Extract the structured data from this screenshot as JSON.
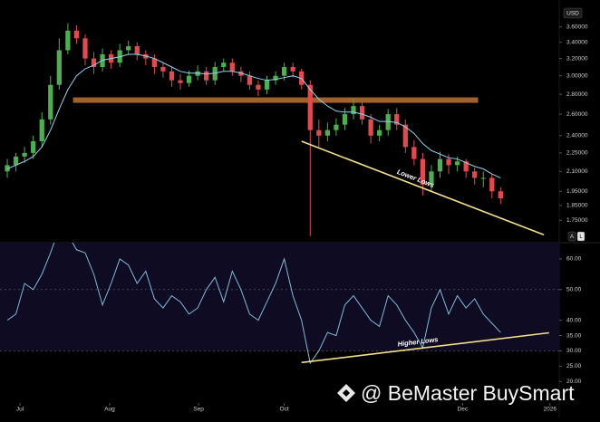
{
  "chart_data": [
    {
      "type": "candlestick",
      "currency": "USD",
      "log": true,
      "up_color": "#4caf50",
      "down_color": "#e5484d",
      "xlim": [
        -0.84,
        63.77
      ],
      "ylim": [
        1.61,
        3.98
      ],
      "yticks": [
        {
          "value": 3.6,
          "label": "3.60000"
        },
        {
          "value": 3.4,
          "label": "3.40000"
        },
        {
          "value": 3.2,
          "label": "3.20000"
        },
        {
          "value": 3.0,
          "label": "3.00000"
        },
        {
          "value": 2.8,
          "label": "2.80000"
        },
        {
          "value": 2.6,
          "label": "2.60000"
        },
        {
          "value": 2.4,
          "label": "2.40000"
        },
        {
          "value": 2.25,
          "label": "2.25000"
        },
        {
          "value": 2.1,
          "label": "2.10000"
        },
        {
          "value": 1.95,
          "label": "1.95000"
        },
        {
          "value": 1.85,
          "label": "1.85000"
        },
        {
          "value": 1.75,
          "label": "1.75000"
        }
      ],
      "open": [
        2.1,
        2.15,
        2.22,
        2.25,
        2.35,
        2.55,
        2.9,
        3.3,
        3.55,
        3.45,
        3.2,
        3.1,
        3.25,
        3.15,
        3.3,
        3.35,
        3.25,
        3.2,
        3.1,
        3.05,
        2.95,
        2.92,
        3.0,
        3.05,
        2.95,
        3.1,
        3.15,
        3.05,
        3.0,
        2.9,
        2.85,
        2.95,
        3.0,
        3.1,
        3.05,
        2.9,
        2.45,
        2.4,
        2.45,
        2.5,
        2.6,
        2.68,
        2.55,
        2.4,
        2.45,
        2.6,
        2.5,
        2.3,
        2.2,
        2.0,
        2.1,
        2.2,
        2.15,
        2.18,
        2.1,
        2.05,
        2.05,
        1.95
      ],
      "high": [
        2.2,
        2.25,
        2.3,
        2.4,
        2.62,
        3.0,
        3.45,
        3.65,
        3.62,
        3.5,
        3.28,
        3.32,
        3.3,
        3.38,
        3.42,
        3.4,
        3.3,
        3.25,
        3.15,
        3.1,
        3.02,
        3.06,
        3.12,
        3.1,
        3.16,
        3.2,
        3.2,
        3.1,
        3.05,
        2.95,
        3.0,
        3.05,
        3.15,
        3.15,
        3.08,
        2.95,
        2.55,
        2.52,
        2.56,
        2.66,
        2.75,
        2.72,
        2.6,
        2.5,
        2.65,
        2.66,
        2.55,
        2.36,
        2.25,
        2.15,
        2.26,
        2.24,
        2.22,
        2.2,
        2.13,
        2.1,
        2.08,
        1.98
      ],
      "low": [
        2.05,
        2.1,
        2.17,
        2.2,
        2.3,
        2.5,
        2.85,
        3.25,
        3.38,
        3.12,
        3.02,
        3.05,
        3.08,
        3.1,
        3.25,
        3.18,
        3.12,
        3.02,
        2.98,
        2.88,
        2.85,
        2.88,
        2.95,
        2.9,
        2.9,
        3.05,
        3.0,
        2.93,
        2.85,
        2.78,
        2.8,
        2.9,
        2.95,
        2.98,
        2.85,
        1.65,
        2.3,
        2.35,
        2.4,
        2.45,
        2.55,
        2.5,
        2.33,
        2.35,
        2.4,
        2.45,
        2.25,
        2.15,
        1.92,
        1.95,
        2.05,
        2.08,
        2.1,
        2.05,
        2.0,
        1.98,
        1.9,
        1.86
      ],
      "close": [
        2.15,
        2.22,
        2.25,
        2.35,
        2.55,
        2.9,
        3.3,
        3.55,
        3.45,
        3.2,
        3.1,
        3.25,
        3.15,
        3.3,
        3.35,
        3.25,
        3.2,
        3.1,
        3.05,
        2.95,
        2.92,
        3.0,
        3.05,
        2.95,
        3.1,
        3.15,
        3.05,
        3.0,
        2.9,
        2.85,
        2.95,
        3.0,
        3.1,
        3.05,
        2.9,
        2.45,
        2.4,
        2.45,
        2.5,
        2.6,
        2.68,
        2.55,
        2.4,
        2.45,
        2.6,
        2.5,
        2.3,
        2.2,
        2.0,
        2.1,
        2.2,
        2.15,
        2.18,
        2.1,
        2.05,
        2.05,
        1.95,
        1.9
      ],
      "ma": {
        "color": "#8fd3f0",
        "values": [
          2.12,
          2.15,
          2.18,
          2.22,
          2.3,
          2.45,
          2.65,
          2.85,
          3.0,
          3.08,
          3.12,
          3.18,
          3.2,
          3.22,
          3.25,
          3.25,
          3.23,
          3.2,
          3.15,
          3.1,
          3.05,
          3.03,
          3.03,
          3.02,
          3.03,
          3.05,
          3.05,
          3.03,
          3.0,
          2.97,
          2.95,
          2.96,
          2.98,
          3.0,
          2.97,
          2.85,
          2.75,
          2.68,
          2.63,
          2.62,
          2.62,
          2.6,
          2.57,
          2.53,
          2.53,
          2.52,
          2.48,
          2.42,
          2.33,
          2.27,
          2.24,
          2.21,
          2.2,
          2.17,
          2.14,
          2.12,
          2.08,
          2.05
        ]
      },
      "resistance": {
        "value": 2.74,
        "x": [
          7.6,
          54.4
        ],
        "color": "#a0612a"
      },
      "trendline": {
        "label": "Lower Lows",
        "x": [
          34.0,
          62.0
        ],
        "y": [
          2.35,
          1.658
        ],
        "color": "#f3e08a"
      },
      "buttons": [
        "A",
        "L"
      ]
    },
    {
      "type": "line",
      "color": "#7fbcd6",
      "xlim": [
        -0.84,
        63.77
      ],
      "ylim": [
        13,
        65.3
      ],
      "yticks": [
        {
          "value": 60,
          "label": "60.00"
        },
        {
          "value": 50,
          "label": "50.00"
        },
        {
          "value": 40,
          "label": "40.00"
        },
        {
          "value": 35,
          "label": "35.00"
        },
        {
          "value": 30,
          "label": "30.00"
        },
        {
          "value": 25,
          "label": "25.00"
        },
        {
          "value": 20,
          "label": "20.00"
        }
      ],
      "levels": [
        50,
        30
      ],
      "values": [
        40,
        42,
        52,
        50,
        55,
        62,
        70,
        68,
        63,
        62,
        55,
        45,
        52,
        60,
        58,
        52,
        56,
        47,
        44,
        48,
        46,
        42,
        44,
        50,
        54,
        46,
        56,
        50,
        42,
        40,
        46,
        52,
        60,
        48,
        40,
        26,
        30,
        36,
        35,
        45,
        48,
        44,
        40,
        38,
        48,
        45,
        40,
        36,
        31,
        44,
        50,
        42,
        48,
        44,
        47,
        42,
        39,
        36
      ],
      "trendline": {
        "label": "Higher Lows",
        "x": [
          34.0,
          62.6
        ],
        "y": [
          26.2,
          35.9
        ],
        "color": "#f3e08a"
      },
      "xticks": [
        {
          "value": 1.47,
          "label": "Jul"
        },
        {
          "value": 11.83,
          "label": "Aug"
        },
        {
          "value": 22.1,
          "label": "Sep"
        },
        {
          "value": 32.0,
          "label": "Oct"
        },
        {
          "value": 52.6,
          "label": "Dec"
        },
        {
          "value": 62.7,
          "label": "2026"
        }
      ]
    }
  ],
  "watermark": "@ BeMaster BuySmart"
}
